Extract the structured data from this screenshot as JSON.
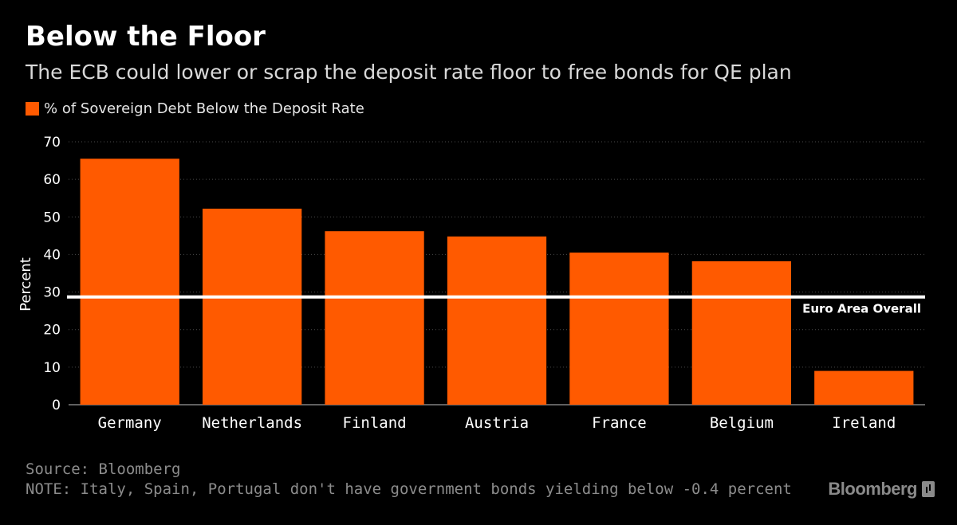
{
  "header": {
    "title": "Below the Floor",
    "subtitle": "The ECB could lower or scrap the deposit rate floor to free bonds for QE plan"
  },
  "legend": {
    "label": "% of Sovereign Debt Below the Deposit Rate"
  },
  "footer": {
    "source": "Source: Bloomberg",
    "note": "NOTE: Italy, Spain, Portugal don't have government bonds yielding below -0.4 percent",
    "brand": "Bloomberg"
  },
  "colors": {
    "bar": "#ff5a00",
    "background": "#000000",
    "reference_line": "#ffffff",
    "grid": "#4a4a4a",
    "text": "#ffffff",
    "muted": "#8c8c8c"
  },
  "chart_data": {
    "type": "bar",
    "title": "Below the Floor",
    "xlabel": "",
    "ylabel": "Percent",
    "ylim": [
      0,
      70
    ],
    "yticks": [
      0,
      10,
      20,
      30,
      40,
      50,
      60,
      70
    ],
    "grid": true,
    "categories": [
      "Germany",
      "Netherlands",
      "Finland",
      "Austria",
      "France",
      "Belgium",
      "Ireland"
    ],
    "series": [
      {
        "name": "% of Sovereign Debt Below the Deposit Rate",
        "values": [
          65.5,
          52.2,
          46.2,
          44.8,
          40.5,
          38.2,
          9.0
        ]
      }
    ],
    "reference_line": {
      "label": "Euro Area Overall",
      "value": 28.7
    }
  }
}
